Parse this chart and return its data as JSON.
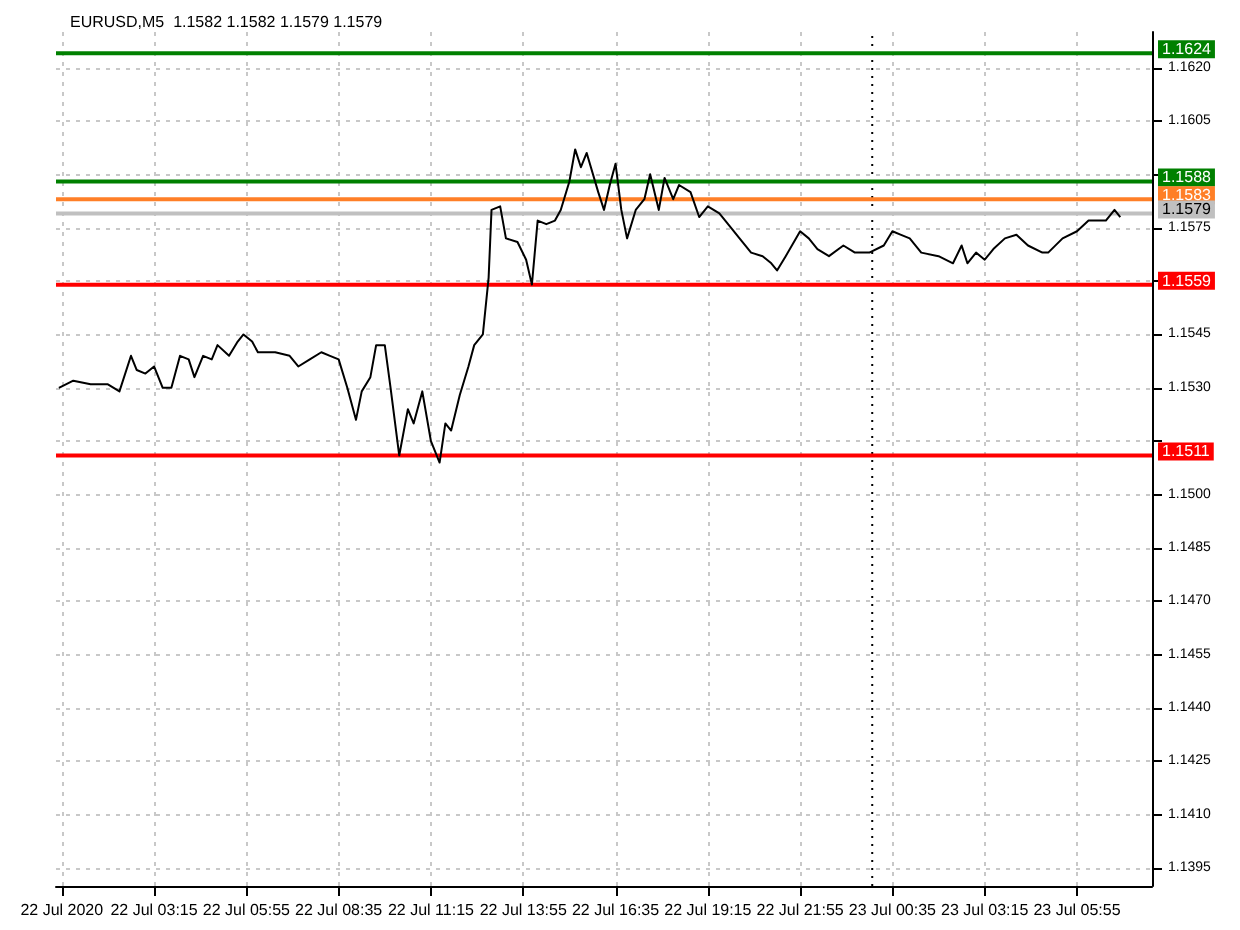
{
  "chart_data": {
    "type": "line",
    "title": "EURUSD,M5  1.1582 1.1582 1.1579 1.1579",
    "x": [
      "2020-07-22T00:30",
      "2020-07-22T00:55",
      "2020-07-22T01:25",
      "2020-07-22T01:55",
      "2020-07-22T02:15",
      "2020-07-22T02:35",
      "2020-07-22T02:45",
      "2020-07-22T03:00",
      "2020-07-22T03:15",
      "2020-07-22T03:30",
      "2020-07-22T03:45",
      "2020-07-22T04:00",
      "2020-07-22T04:15",
      "2020-07-22T04:25",
      "2020-07-22T04:40",
      "2020-07-22T04:55",
      "2020-07-22T05:05",
      "2020-07-22T05:25",
      "2020-07-22T05:40",
      "2020-07-22T05:50",
      "2020-07-22T06:05",
      "2020-07-22T06:15",
      "2020-07-22T06:45",
      "2020-07-22T07:10",
      "2020-07-22T07:25",
      "2020-07-22T07:45",
      "2020-07-22T08:05",
      "2020-07-22T08:20",
      "2020-07-22T08:35",
      "2020-07-22T08:50",
      "2020-07-22T09:05",
      "2020-07-22T09:15",
      "2020-07-22T09:30",
      "2020-07-22T09:40",
      "2020-07-22T09:55",
      "2020-07-22T10:05",
      "2020-07-22T10:20",
      "2020-07-22T10:35",
      "2020-07-22T10:45",
      "2020-07-22T11:00",
      "2020-07-22T11:15",
      "2020-07-22T11:30",
      "2020-07-22T11:40",
      "2020-07-22T11:50",
      "2020-07-22T12:05",
      "2020-07-22T12:20",
      "2020-07-22T12:30",
      "2020-07-22T12:45",
      "2020-07-22T12:55",
      "2020-07-22T13:00",
      "2020-07-22T13:15",
      "2020-07-22T13:25",
      "2020-07-22T13:45",
      "2020-07-22T14:00",
      "2020-07-22T14:10",
      "2020-07-22T14:20",
      "2020-07-22T14:35",
      "2020-07-22T14:50",
      "2020-07-22T15:00",
      "2020-07-22T15:15",
      "2020-07-22T15:25",
      "2020-07-22T15:35",
      "2020-07-22T15:45",
      "2020-07-22T16:05",
      "2020-07-22T16:15",
      "2020-07-22T16:25",
      "2020-07-22T16:35",
      "2020-07-22T16:45",
      "2020-07-22T16:55",
      "2020-07-22T17:10",
      "2020-07-22T17:25",
      "2020-07-22T17:35",
      "2020-07-22T17:50",
      "2020-07-22T18:00",
      "2020-07-22T18:15",
      "2020-07-22T18:25",
      "2020-07-22T18:45",
      "2020-07-22T19:00",
      "2020-07-22T19:15",
      "2020-07-22T19:35",
      "2020-07-22T19:55",
      "2020-07-22T20:10",
      "2020-07-22T20:30",
      "2020-07-22T20:50",
      "2020-07-22T21:05",
      "2020-07-22T21:15",
      "2020-07-22T21:30",
      "2020-07-22T21:55",
      "2020-07-22T22:10",
      "2020-07-22T22:25",
      "2020-07-22T22:45",
      "2020-07-22T23:10",
      "2020-07-22T23:30",
      "2020-07-22T23:55",
      "2020-07-23T00:20",
      "2020-07-23T00:35",
      "2020-07-23T00:50",
      "2020-07-23T01:05",
      "2020-07-23T01:25",
      "2020-07-23T01:55",
      "2020-07-23T02:20",
      "2020-07-23T02:35",
      "2020-07-23T02:45",
      "2020-07-23T03:00",
      "2020-07-23T03:15",
      "2020-07-23T03:30",
      "2020-07-23T03:50",
      "2020-07-23T04:10",
      "2020-07-23T04:30",
      "2020-07-23T04:55",
      "2020-07-23T05:05",
      "2020-07-23T05:30",
      "2020-07-23T05:55",
      "2020-07-23T06:15",
      "2020-07-23T06:45",
      "2020-07-23T07:00",
      "2020-07-23T07:10"
    ],
    "series": [
      {
        "color": "#000000",
        "values": [
          1.153,
          1.1532,
          1.1531,
          1.1531,
          1.1529,
          1.1539,
          1.1535,
          1.1534,
          1.1536,
          1.153,
          1.153,
          1.1539,
          1.1538,
          1.1533,
          1.1539,
          1.1538,
          1.1542,
          1.1539,
          1.1543,
          1.1545,
          1.1543,
          1.154,
          1.154,
          1.1539,
          1.1536,
          1.1538,
          1.154,
          1.1539,
          1.1538,
          1.153,
          1.1521,
          1.1529,
          1.1533,
          1.1542,
          1.1542,
          1.153,
          1.1511,
          1.1524,
          1.152,
          1.1529,
          1.1515,
          1.1509,
          1.152,
          1.1518,
          1.1528,
          1.1536,
          1.1542,
          1.1545,
          1.1561,
          1.158,
          1.1581,
          1.1572,
          1.1571,
          1.1566,
          1.1559,
          1.1577,
          1.1576,
          1.1577,
          1.158,
          1.1588,
          1.1597,
          1.1592,
          1.1596,
          1.1585,
          1.158,
          1.1587,
          1.1593,
          1.158,
          1.1572,
          1.158,
          1.1583,
          1.159,
          1.158,
          1.1589,
          1.1583,
          1.1587,
          1.1585,
          1.1578,
          1.1581,
          1.1579,
          1.1575,
          1.1572,
          1.1568,
          1.1567,
          1.1565,
          1.1563,
          1.1567,
          1.1574,
          1.1572,
          1.1569,
          1.1567,
          1.157,
          1.1568,
          1.1568,
          1.157,
          1.1574,
          1.1573,
          1.1572,
          1.1568,
          1.1567,
          1.1565,
          1.157,
          1.1565,
          1.1568,
          1.1566,
          1.1569,
          1.1572,
          1.1573,
          1.157,
          1.1568,
          1.1568,
          1.1572,
          1.1574,
          1.1577,
          1.1577,
          1.158,
          1.1578
        ]
      }
    ],
    "xlim": [
      "2020-07-22T00:25",
      "2020-07-23T08:05"
    ],
    "xticks": [
      {
        "value": "2020-07-22T00:35",
        "label": "22 Jul 2020"
      },
      {
        "value": "2020-07-22T03:15",
        "label": "22 Jul 03:15"
      },
      {
        "value": "2020-07-22T05:55",
        "label": "22 Jul 05:55"
      },
      {
        "value": "2020-07-22T08:35",
        "label": "22 Jul 08:35"
      },
      {
        "value": "2020-07-22T11:15",
        "label": "22 Jul 11:15"
      },
      {
        "value": "2020-07-22T13:55",
        "label": "22 Jul 13:55"
      },
      {
        "value": "2020-07-22T16:35",
        "label": "22 Jul 16:35"
      },
      {
        "value": "2020-07-22T19:15",
        "label": "22 Jul 19:15"
      },
      {
        "value": "2020-07-22T21:55",
        "label": "22 Jul 21:55"
      },
      {
        "value": "2020-07-23T00:35",
        "label": "23 Jul 00:35"
      },
      {
        "value": "2020-07-23T03:15",
        "label": "23 Jul 03:15"
      },
      {
        "value": "2020-07-23T05:55",
        "label": "23 Jul 05:55"
      }
    ],
    "ylim": [
      1.139,
      1.163
    ],
    "yticks": [
      1.1395,
      {
        "value": 1.141,
        "label": "1.1410"
      },
      1.1425,
      {
        "value": 1.144,
        "label": "1.1440"
      },
      1.1455,
      {
        "value": 1.147,
        "label": "1.1470"
      },
      1.1485,
      {
        "value": 1.15,
        "label": "1.1500"
      },
      {
        "value": 1.1515,
        "label": null
      },
      {
        "value": 1.153,
        "label": "1.1530"
      },
      1.1545,
      {
        "value": 1.156,
        "label": null
      },
      1.1575,
      {
        "value": 1.159,
        "label": null
      },
      1.1605,
      {
        "value": 1.162,
        "label": "1.1620"
      }
    ],
    "ref_lines": [
      {
        "axis": "y",
        "value": 1.1624,
        "label": "1.1624",
        "color": "#008000"
      },
      {
        "axis": "y",
        "value": 1.1588,
        "label": "1.1588",
        "color": "#008000"
      },
      {
        "axis": "y",
        "value": 1.1583,
        "label": "1.1583",
        "color": "#ff7f27"
      },
      {
        "axis": "y",
        "value": 1.1579,
        "label": "1.1579",
        "color": "#c0c0c0"
      },
      {
        "axis": "y",
        "value": 1.1559,
        "label": "1.1559",
        "color": "#ff0000"
      },
      {
        "axis": "y",
        "value": 1.1511,
        "label": "1.1511",
        "color": "#ff0000"
      },
      {
        "axis": "x",
        "value": "2020-07-23T00:00",
        "color": "#000000",
        "line_style": "dotted"
      }
    ],
    "grid": true,
    "marker": "none",
    "line_style": "solid"
  }
}
